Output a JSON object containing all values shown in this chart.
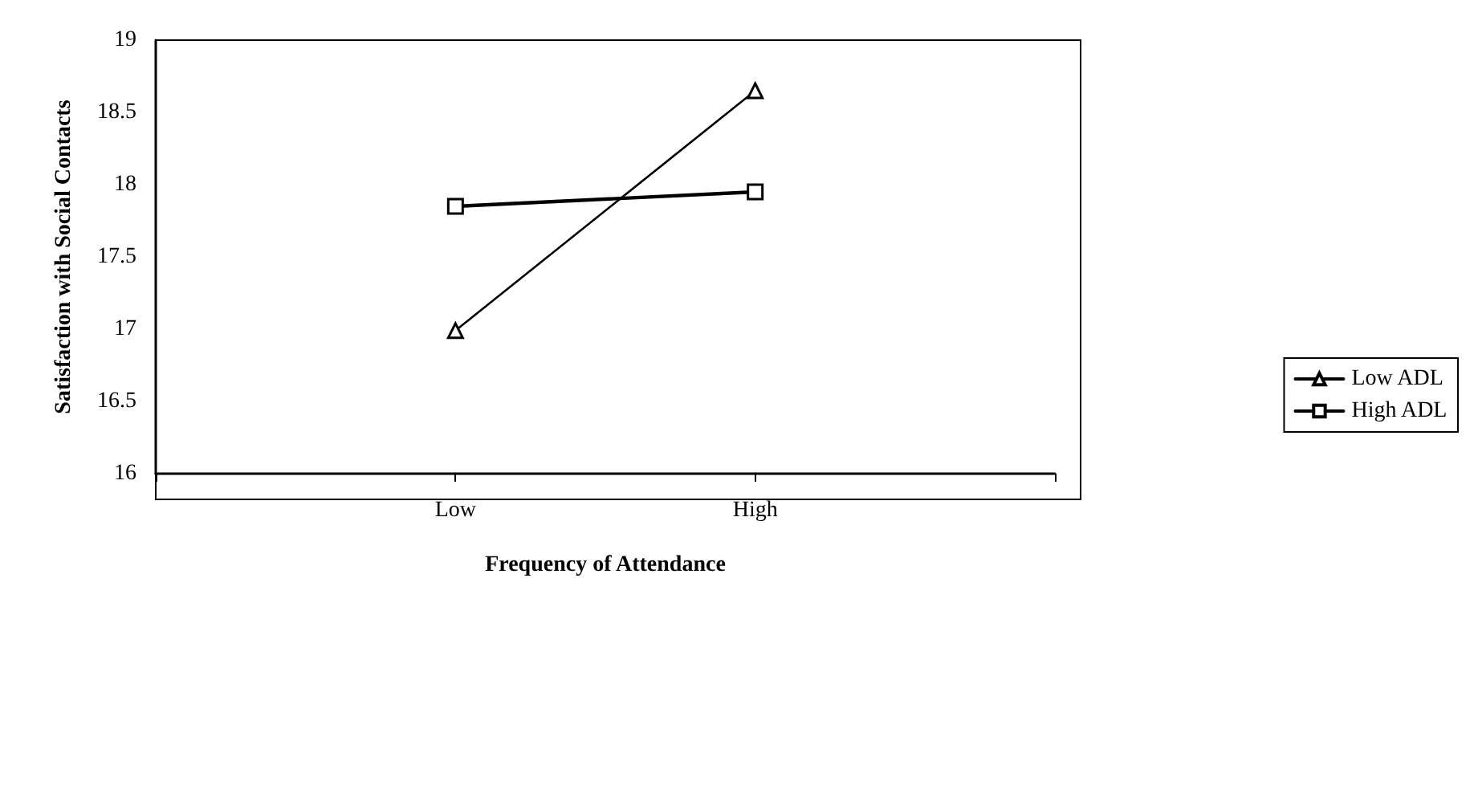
{
  "chart_data": {
    "type": "line",
    "xlabel": "Frequency of Attendance",
    "ylabel": "Satisfaction with Social Contacts",
    "categories": [
      null,
      "Low",
      "High",
      null
    ],
    "series": [
      {
        "name": "Low ADL",
        "color": "#000000",
        "values": [
          null,
          16.99,
          18.65,
          null
        ],
        "marker": "triangle"
      },
      {
        "name": "High ADL",
        "color": "#000000",
        "values": [
          null,
          17.85,
          17.95,
          null
        ],
        "marker": "square"
      }
    ],
    "ylim": [
      16,
      19
    ],
    "yticks": [
      16,
      16.5,
      17,
      17.5,
      18,
      18.5,
      19
    ],
    "grid": false,
    "legend": "right",
    "line_style": "solid"
  }
}
